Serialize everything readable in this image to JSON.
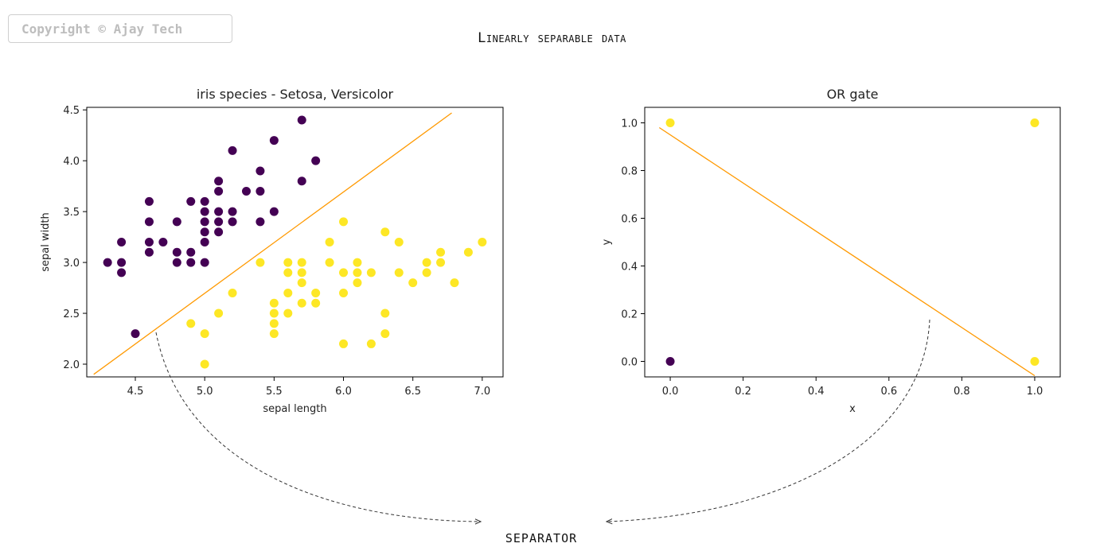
{
  "watermark": "Copyright © Ajay Tech",
  "heading": "Linearly separable data",
  "footer_label": "SEPARATOR",
  "colors": {
    "class0": "#440154",
    "class1": "#fde725",
    "separator": "#ff9900",
    "arrow": "#333333"
  },
  "chart_data": [
    {
      "type": "scatter",
      "title": "iris species - Setosa, Versicolor",
      "xlabel": "sepal length",
      "ylabel": "sepal width",
      "xlim": [
        4.15,
        7.15
      ],
      "ylim": [
        1.875,
        4.525
      ],
      "xticks": [
        "4.5",
        "5.0",
        "5.5",
        "6.0",
        "6.5",
        "7.0"
      ],
      "xtick_values": [
        4.5,
        5.0,
        5.5,
        6.0,
        6.5,
        7.0
      ],
      "yticks": [
        "2.0",
        "2.5",
        "3.0",
        "3.5",
        "4.0",
        "4.5"
      ],
      "ytick_values": [
        2.0,
        2.5,
        3.0,
        3.5,
        4.0,
        4.5
      ],
      "series": [
        {
          "class": 0,
          "points": [
            [
              4.3,
              3.0
            ],
            [
              4.4,
              3.2
            ],
            [
              4.4,
              3.0
            ],
            [
              4.4,
              2.9
            ],
            [
              4.5,
              2.3
            ],
            [
              4.6,
              3.6
            ],
            [
              4.6,
              3.4
            ],
            [
              4.6,
              3.2
            ],
            [
              4.6,
              3.1
            ],
            [
              4.7,
              3.2
            ],
            [
              4.8,
              3.4
            ],
            [
              4.8,
              3.1
            ],
            [
              4.8,
              3.0
            ],
            [
              4.9,
              3.6
            ],
            [
              4.9,
              3.1
            ],
            [
              4.9,
              3.0
            ],
            [
              5.0,
              3.6
            ],
            [
              5.0,
              3.5
            ],
            [
              5.0,
              3.4
            ],
            [
              5.0,
              3.3
            ],
            [
              5.0,
              3.2
            ],
            [
              5.0,
              3.0
            ],
            [
              5.1,
              3.8
            ],
            [
              5.1,
              3.7
            ],
            [
              5.1,
              3.5
            ],
            [
              5.1,
              3.4
            ],
            [
              5.1,
              3.3
            ],
            [
              5.2,
              4.1
            ],
            [
              5.2,
              3.5
            ],
            [
              5.2,
              3.4
            ],
            [
              5.3,
              3.7
            ],
            [
              5.4,
              3.9
            ],
            [
              5.4,
              3.7
            ],
            [
              5.4,
              3.4
            ],
            [
              5.5,
              4.2
            ],
            [
              5.5,
              3.5
            ],
            [
              5.7,
              4.4
            ],
            [
              5.7,
              3.8
            ],
            [
              5.8,
              4.0
            ]
          ]
        },
        {
          "class": 1,
          "points": [
            [
              4.9,
              2.4
            ],
            [
              5.0,
              2.3
            ],
            [
              5.0,
              2.0
            ],
            [
              5.1,
              2.5
            ],
            [
              5.2,
              2.7
            ],
            [
              5.4,
              3.0
            ],
            [
              5.5,
              2.6
            ],
            [
              5.5,
              2.5
            ],
            [
              5.5,
              2.4
            ],
            [
              5.5,
              2.3
            ],
            [
              5.6,
              3.0
            ],
            [
              5.6,
              2.9
            ],
            [
              5.6,
              2.7
            ],
            [
              5.6,
              2.5
            ],
            [
              5.7,
              3.0
            ],
            [
              5.7,
              2.9
            ],
            [
              5.7,
              2.8
            ],
            [
              5.7,
              2.6
            ],
            [
              5.8,
              2.7
            ],
            [
              5.8,
              2.6
            ],
            [
              5.9,
              3.2
            ],
            [
              5.9,
              3.0
            ],
            [
              6.0,
              3.4
            ],
            [
              6.0,
              2.9
            ],
            [
              6.0,
              2.7
            ],
            [
              6.0,
              2.2
            ],
            [
              6.1,
              3.0
            ],
            [
              6.1,
              2.9
            ],
            [
              6.1,
              2.8
            ],
            [
              6.2,
              2.9
            ],
            [
              6.2,
              2.2
            ],
            [
              6.3,
              3.3
            ],
            [
              6.3,
              2.5
            ],
            [
              6.3,
              2.3
            ],
            [
              6.4,
              3.2
            ],
            [
              6.4,
              2.9
            ],
            [
              6.5,
              2.8
            ],
            [
              6.6,
              3.0
            ],
            [
              6.6,
              2.9
            ],
            [
              6.7,
              3.1
            ],
            [
              6.7,
              3.0
            ],
            [
              6.8,
              2.8
            ],
            [
              6.9,
              3.1
            ],
            [
              7.0,
              3.2
            ]
          ]
        }
      ],
      "separator": [
        [
          4.2,
          1.9
        ],
        [
          6.78,
          4.47
        ]
      ]
    },
    {
      "type": "scatter",
      "title": "OR gate",
      "xlabel": "x",
      "ylabel": "y",
      "xlim": [
        -0.07,
        1.07
      ],
      "ylim": [
        -0.065,
        1.065
      ],
      "xticks": [
        "0.0",
        "0.2",
        "0.4",
        "0.6",
        "0.8",
        "1.0"
      ],
      "xtick_values": [
        0.0,
        0.2,
        0.4,
        0.6,
        0.8,
        1.0
      ],
      "yticks": [
        "0.0",
        "0.2",
        "0.4",
        "0.6",
        "0.8",
        "1.0"
      ],
      "ytick_values": [
        0.0,
        0.2,
        0.4,
        0.6,
        0.8,
        1.0
      ],
      "series": [
        {
          "class": 0,
          "points": [
            [
              0.0,
              0.0
            ]
          ]
        },
        {
          "class": 1,
          "points": [
            [
              0.0,
              1.0
            ],
            [
              1.0,
              1.0
            ],
            [
              1.0,
              0.0
            ]
          ]
        }
      ],
      "separator": [
        [
          -0.03,
          0.98
        ],
        [
          1.0,
          -0.06
        ]
      ]
    }
  ]
}
